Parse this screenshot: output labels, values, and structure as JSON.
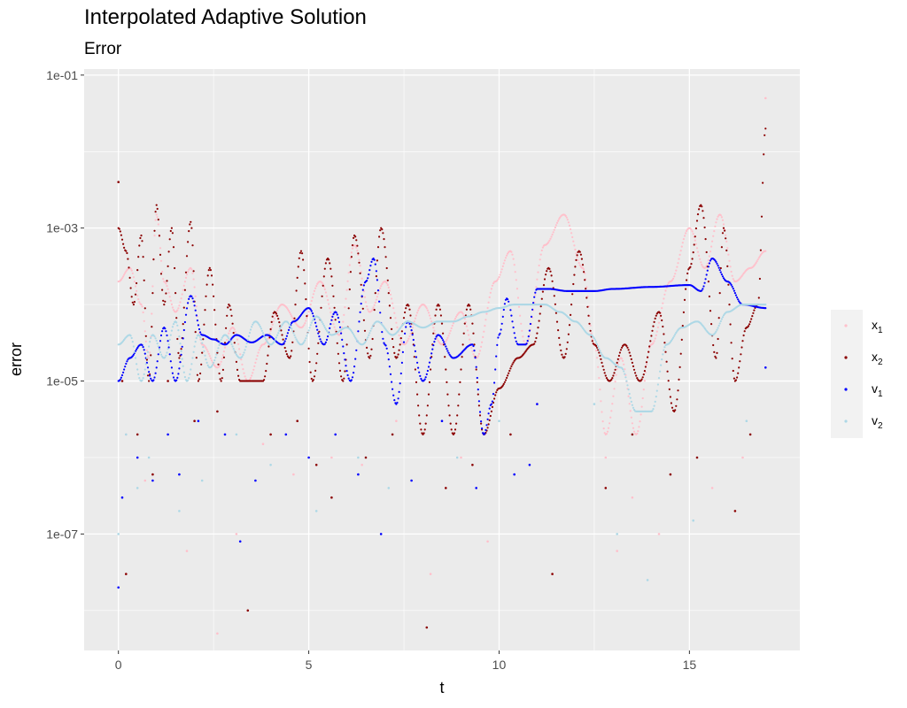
{
  "chart_data": {
    "type": "scatter",
    "title": "Interpolated Adaptive Solution",
    "subtitle": "Error",
    "xlabel": "t",
    "ylabel": "error",
    "xlim": [
      -0.9,
      17.9
    ],
    "ylim": [
      3e-09,
      0.12
    ],
    "y_scale": "log10",
    "grid": true,
    "legend_position": "right",
    "x_ticks": [
      0,
      5,
      10,
      15
    ],
    "x_tick_labels": [
      "0",
      "5",
      "10",
      "15"
    ],
    "y_ticks": [
      1e-07,
      1e-05,
      0.001,
      0.1
    ],
    "y_tick_labels": [
      "1e-07",
      "1e-05",
      "1e-03",
      "1e-01"
    ],
    "series": [
      {
        "name": "x1",
        "label_base": "x",
        "label_sub": "1",
        "color": "#ffc0cb",
        "anchors": [
          [
            0,
            0.0002
          ],
          [
            0.3,
            0.0003
          ],
          [
            0.6,
            0.0001
          ],
          [
            0.8,
            2e-05
          ],
          [
            1.0,
            0.0015
          ],
          [
            1.2,
            0.0002
          ],
          [
            1.5,
            8e-05
          ],
          [
            1.9,
            0.0003
          ],
          [
            2.2,
            3e-05
          ],
          [
            2.6,
            1.5e-05
          ],
          [
            3.0,
            5e-05
          ],
          [
            3.4,
            1e-05
          ],
          [
            3.8,
            3e-05
          ],
          [
            4.3,
            0.0001
          ],
          [
            4.8,
            5e-05
          ],
          [
            5.3,
            0.0002
          ],
          [
            5.8,
            4e-05
          ],
          [
            6.2,
            0.0006
          ],
          [
            6.6,
            8e-05
          ],
          [
            7.0,
            0.0002
          ],
          [
            7.5,
            3e-05
          ],
          [
            8.0,
            0.0001
          ],
          [
            8.5,
            3e-05
          ],
          [
            9.0,
            8e-05
          ],
          [
            9.4,
            2e-05
          ],
          [
            9.9,
            0.0002
          ],
          [
            10.3,
            0.0005
          ],
          [
            10.7,
            3e-05
          ],
          [
            11.2,
            0.0006
          ],
          [
            11.7,
            0.0015
          ],
          [
            12.2,
            0.0003
          ],
          [
            12.5,
            3e-05
          ],
          [
            12.8,
            2e-06
          ],
          [
            13.2,
            2e-05
          ],
          [
            13.6,
            2e-06
          ],
          [
            14.0,
            3e-05
          ],
          [
            14.5,
            0.0002
          ],
          [
            15.0,
            0.001
          ],
          [
            15.4,
            0.0003
          ],
          [
            15.8,
            0.0015
          ],
          [
            16.2,
            0.0002
          ],
          [
            16.6,
            0.0003
          ],
          [
            17.0,
            0.0005
          ]
        ],
        "spikes": [
          [
            0.2,
            2e-06
          ],
          [
            0.7,
            5e-07
          ],
          [
            1.8,
            6e-08
          ],
          [
            2.6,
            5e-09
          ],
          [
            3.1,
            1e-07
          ],
          [
            3.8,
            1.5e-06
          ],
          [
            4.6,
            6e-07
          ],
          [
            5.6,
            1e-06
          ],
          [
            6.4,
            8e-07
          ],
          [
            7.3,
            3e-06
          ],
          [
            8.2,
            3e-08
          ],
          [
            9.0,
            1e-06
          ],
          [
            9.7,
            8e-08
          ],
          [
            11.0,
            5e-06
          ],
          [
            12.8,
            1e-06
          ],
          [
            13.1,
            6e-08
          ],
          [
            13.5,
            3e-07
          ],
          [
            14.2,
            1e-07
          ],
          [
            15.6,
            4e-07
          ],
          [
            16.4,
            1e-06
          ],
          [
            17.0,
            0.05
          ]
        ]
      },
      {
        "name": "x2",
        "label_base": "x",
        "label_sub": "2",
        "color": "#8b0000",
        "anchors": [
          [
            0,
            0.001
          ],
          [
            0.2,
            0.0005
          ],
          [
            0.4,
            0.0001
          ],
          [
            0.6,
            0.0008
          ],
          [
            0.8,
            1e-05
          ],
          [
            1.0,
            0.002
          ],
          [
            1.2,
            0.0001
          ],
          [
            1.4,
            0.001
          ],
          [
            1.6,
            2e-05
          ],
          [
            1.9,
            0.0012
          ],
          [
            2.1,
            1e-05
          ],
          [
            2.4,
            0.0003
          ],
          [
            2.7,
            1e-05
          ],
          [
            2.9,
            0.0001
          ],
          [
            3.2,
            1e-05
          ],
          [
            3.5,
            1e-05
          ],
          [
            3.8,
            1e-05
          ],
          [
            4.1,
            8e-05
          ],
          [
            4.5,
            2e-05
          ],
          [
            4.8,
            0.0005
          ],
          [
            5.1,
            1e-05
          ],
          [
            5.5,
            0.0004
          ],
          [
            5.9,
            1e-05
          ],
          [
            6.2,
            0.0008
          ],
          [
            6.6,
            2e-05
          ],
          [
            6.9,
            0.001
          ],
          [
            7.3,
            2e-05
          ],
          [
            7.6,
            0.0001
          ],
          [
            8.0,
            2e-06
          ],
          [
            8.4,
            0.0001
          ],
          [
            8.8,
            2e-06
          ],
          [
            9.2,
            0.0001
          ],
          [
            9.6,
            2e-06
          ],
          [
            10.0,
            8e-06
          ],
          [
            10.5,
            2e-05
          ],
          [
            10.9,
            3e-05
          ],
          [
            11.3,
            0.0003
          ],
          [
            11.7,
            2e-05
          ],
          [
            12.1,
            0.0005
          ],
          [
            12.5,
            3e-05
          ],
          [
            12.9,
            1e-05
          ],
          [
            13.3,
            3e-05
          ],
          [
            13.7,
            1e-05
          ],
          [
            14.2,
            8e-05
          ],
          [
            14.6,
            4e-06
          ],
          [
            15.0,
            0.0003
          ],
          [
            15.3,
            0.002
          ],
          [
            15.7,
            2e-05
          ],
          [
            15.9,
            0.001
          ],
          [
            16.2,
            1e-05
          ],
          [
            16.5,
            5e-05
          ],
          [
            16.8,
            0.0001
          ],
          [
            17.0,
            0.02
          ]
        ],
        "spikes": [
          [
            0.0,
            0.004
          ],
          [
            0.1,
            1e-05
          ],
          [
            0.2,
            3e-08
          ],
          [
            0.5,
            2e-06
          ],
          [
            0.9,
            6e-07
          ],
          [
            1.3,
            1e-05
          ],
          [
            2.0,
            3e-06
          ],
          [
            2.6,
            4e-06
          ],
          [
            3.4,
            1e-08
          ],
          [
            4.0,
            2e-06
          ],
          [
            4.7,
            3e-06
          ],
          [
            5.2,
            8e-07
          ],
          [
            5.6,
            3e-07
          ],
          [
            6.5,
            1e-06
          ],
          [
            7.2,
            2e-06
          ],
          [
            8.1,
            6e-09
          ],
          [
            8.6,
            4e-07
          ],
          [
            9.3,
            8e-07
          ],
          [
            10.3,
            2e-06
          ],
          [
            11.4,
            3e-08
          ],
          [
            12.8,
            4e-07
          ],
          [
            13.5,
            2e-06
          ],
          [
            14.5,
            6e-07
          ],
          [
            15.2,
            1e-06
          ],
          [
            16.2,
            2e-07
          ],
          [
            16.6,
            2e-06
          ]
        ]
      },
      {
        "name": "v1",
        "label_base": "v",
        "label_sub": "1",
        "color": "#0000ff",
        "anchors": [
          [
            0,
            1e-05
          ],
          [
            0.3,
            2e-05
          ],
          [
            0.6,
            3e-05
          ],
          [
            0.9,
            1e-05
          ],
          [
            1.2,
            5e-05
          ],
          [
            1.5,
            1e-05
          ],
          [
            1.9,
            0.00013
          ],
          [
            2.2,
            4e-05
          ],
          [
            2.5,
            3.5e-05
          ],
          [
            2.8,
            3e-05
          ],
          [
            3.1,
            4e-05
          ],
          [
            3.5,
            3.2e-05
          ],
          [
            3.9,
            4e-05
          ],
          [
            4.3,
            3e-05
          ],
          [
            4.6,
            6e-05
          ],
          [
            5.0,
            9e-05
          ],
          [
            5.4,
            3e-05
          ],
          [
            5.7,
            8e-05
          ],
          [
            6.1,
            1e-05
          ],
          [
            6.5,
            0.0002
          ],
          [
            6.7,
            0.0004
          ],
          [
            7.0,
            3e-05
          ],
          [
            7.3,
            5e-06
          ],
          [
            7.6,
            6e-05
          ],
          [
            8.0,
            1e-05
          ],
          [
            8.4,
            4e-05
          ],
          [
            8.8,
            2e-05
          ],
          [
            9.3,
            3e-05
          ],
          [
            9.6,
            2e-06
          ],
          [
            9.8,
            5e-06
          ],
          [
            10.0,
            4e-05
          ],
          [
            10.2,
            0.00012
          ],
          [
            10.5,
            3e-05
          ],
          [
            10.7,
            3e-05
          ],
          [
            11.0,
            0.00016
          ],
          [
            11.3,
            0.00016
          ],
          [
            11.8,
            0.00015
          ],
          [
            12.5,
            0.00015
          ],
          [
            13.0,
            0.00016
          ],
          [
            14.0,
            0.00017
          ],
          [
            15.0,
            0.00018
          ],
          [
            15.3,
            0.00015
          ],
          [
            15.6,
            0.0004
          ],
          [
            16.0,
            0.0002
          ],
          [
            16.4,
            0.0001
          ],
          [
            17.0,
            9e-05
          ]
        ],
        "spikes": [
          [
            0.0,
            2e-08
          ],
          [
            0.1,
            3e-07
          ],
          [
            0.5,
            1e-06
          ],
          [
            0.9,
            5e-07
          ],
          [
            1.3,
            2e-06
          ],
          [
            1.6,
            6e-07
          ],
          [
            2.1,
            3e-06
          ],
          [
            2.8,
            2e-06
          ],
          [
            3.2,
            8e-08
          ],
          [
            3.6,
            5e-07
          ],
          [
            4.4,
            2e-06
          ],
          [
            5.0,
            1e-06
          ],
          [
            5.7,
            2e-06
          ],
          [
            6.3,
            6e-07
          ],
          [
            6.9,
            1e-07
          ],
          [
            7.7,
            5e-07
          ],
          [
            8.5,
            3e-06
          ],
          [
            9.4,
            4e-07
          ],
          [
            10.4,
            6e-07
          ],
          [
            10.8,
            8e-07
          ],
          [
            11.0,
            5e-06
          ],
          [
            17.0,
            1.5e-05
          ]
        ]
      },
      {
        "name": "v2",
        "label_base": "v",
        "label_sub": "2",
        "color": "#add8e6",
        "anchors": [
          [
            0,
            3e-05
          ],
          [
            0.3,
            4e-05
          ],
          [
            0.6,
            1e-05
          ],
          [
            0.9,
            4e-05
          ],
          [
            1.2,
            2e-05
          ],
          [
            1.5,
            6e-05
          ],
          [
            1.8,
            1e-05
          ],
          [
            2.1,
            4e-05
          ],
          [
            2.4,
            1.5e-05
          ],
          [
            2.8,
            4e-05
          ],
          [
            3.2,
            2e-05
          ],
          [
            3.6,
            6e-05
          ],
          [
            4.0,
            3e-05
          ],
          [
            4.4,
            6e-05
          ],
          [
            4.8,
            3e-05
          ],
          [
            5.2,
            7e-05
          ],
          [
            5.6,
            4e-05
          ],
          [
            6.0,
            5e-05
          ],
          [
            6.4,
            3e-05
          ],
          [
            6.8,
            6e-05
          ],
          [
            7.2,
            4e-05
          ],
          [
            7.6,
            6e-05
          ],
          [
            8.0,
            5e-05
          ],
          [
            8.4,
            6e-05
          ],
          [
            8.8,
            6e-05
          ],
          [
            9.2,
            7e-05
          ],
          [
            9.6,
            8e-05
          ],
          [
            10.0,
            9e-05
          ],
          [
            10.4,
            0.0001
          ],
          [
            10.8,
            0.0001
          ],
          [
            11.2,
            0.0001
          ],
          [
            11.6,
            8e-05
          ],
          [
            12.0,
            6e-05
          ],
          [
            12.4,
            4e-05
          ],
          [
            12.8,
            2e-05
          ],
          [
            13.2,
            1.5e-05
          ],
          [
            13.6,
            4e-06
          ],
          [
            14.0,
            4e-06
          ],
          [
            14.4,
            3e-05
          ],
          [
            14.8,
            5e-05
          ],
          [
            15.2,
            6e-05
          ],
          [
            15.6,
            4e-05
          ],
          [
            16.0,
            8e-05
          ],
          [
            16.4,
            0.0001
          ],
          [
            17.0,
            0.0001
          ]
        ],
        "spikes": [
          [
            0.0,
            1e-07
          ],
          [
            0.2,
            2e-06
          ],
          [
            0.5,
            4e-07
          ],
          [
            0.8,
            1e-06
          ],
          [
            1.6,
            2e-07
          ],
          [
            2.2,
            5e-07
          ],
          [
            3.1,
            2e-06
          ],
          [
            4.0,
            8e-07
          ],
          [
            5.2,
            2e-07
          ],
          [
            6.3,
            1e-06
          ],
          [
            7.1,
            4e-07
          ],
          [
            8.9,
            1e-06
          ],
          [
            10.0,
            3e-06
          ],
          [
            12.5,
            5e-06
          ],
          [
            13.1,
            1e-07
          ],
          [
            13.9,
            2.5e-08
          ],
          [
            15.1,
            1.5e-07
          ],
          [
            16.5,
            3e-06
          ]
        ]
      }
    ]
  }
}
